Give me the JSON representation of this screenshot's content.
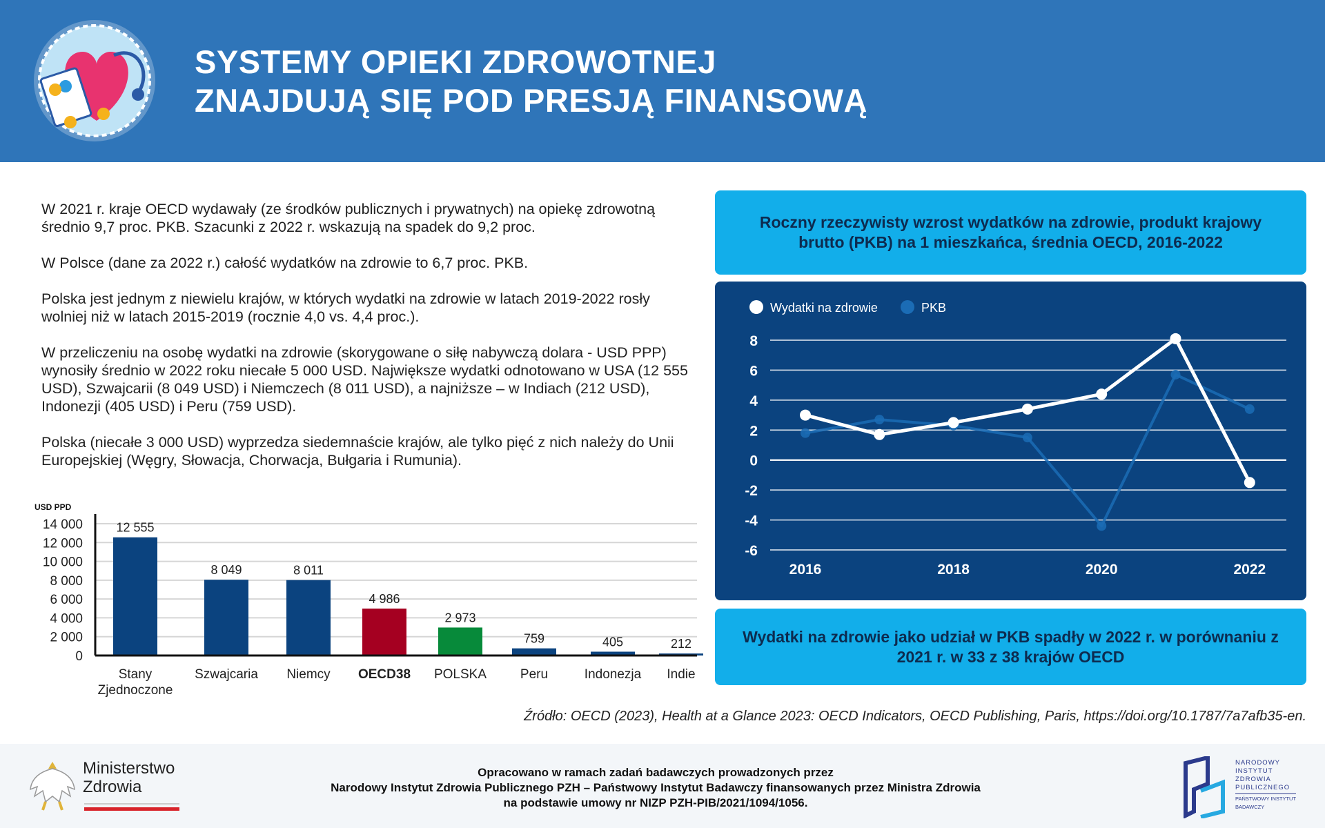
{
  "header": {
    "title_line1": "SYSTEMY OPIEKI ZDROWOTNEJ",
    "title_line2": "ZNAJDUJĄ SIĘ POD PRESJĄ FINANSOWĄ"
  },
  "intro": {
    "p1": "W 2021 r. kraje OECD wydawały (ze środków publicznych i prywatnych) na opiekę zdrowotną średnio 9,7 proc. PKB. Szacunki z 2022 r. wskazują na spadek do 9,2 proc.",
    "p2": "W Polsce (dane za 2022 r.) całość wydatków na zdrowie to 6,7 proc. PKB.",
    "p3": "Polska jest jednym z niewielu krajów, w których wydatki na zdrowie w latach 2019-2022 rosły wolniej niż w latach 2015-2019 (rocznie 4,0 vs. 4,4 proc.).",
    "p4": "W przeliczeniu na osobę wydatki na zdrowie (skorygowane o siłę nabywczą dolara - USD PPP) wynosiły średnio w 2022 roku niecałe 5 000 USD. Największe wydatki odnotowano w USA (12 555 USD), Szwajcarii (8 049 USD) i Niemczech (8 011 USD), a najniższe – w Indiach (212 USD), Indonezji (405 USD) i Peru (759 USD).",
    "p5": "Polska (niecałe 3 000 USD) wyprzedza siedemnaście krajów, ale tylko pięć z nich należy do Unii Europejskiej (Węgry, Słowacja, Chorwacja, Bułgaria i Rumunia)."
  },
  "box_top": "Roczny rzeczywisty wzrost wydatków na zdrowie, produkt krajowy brutto (PKB) na 1 mieszkańca, średnia OECD,  2016-2022",
  "box_bottom": "Wydatki na zdrowie jako udział w PKB spadły w 2022 r. w porównaniu z 2021 r. w 33 z 38 krajów OECD",
  "source": "Źródło: OECD (2023), Health at a Glance 2023: OECD Indicators, OECD Publishing, Paris, https://doi.org/10.1787/7a7afb35-en.",
  "footer": {
    "line1": "Opracowano w ramach zadań badawczych prowadzonych przez",
    "line2": "Narodowy Instytut Zdrowia Publicznego PZH – Państwowy Instytut Badawczy finansowanych przez Ministra Zdrowia",
    "line3": "na podstawie umowy nr NIZP PZH-PIB/2021/1094/1056.",
    "ministry": "Ministerstwo Zdrowia",
    "ministry_l1": "Ministerstwo",
    "ministry_l2": "Zdrowia",
    "pzh": "NARODOWY INSTYTUT ZDROWIA PUBLICZNEGO PAŃSTWOWY INSTYTUT BADAWCZY"
  },
  "colors": {
    "header": "#2f75b9",
    "cyan": "#12aeea",
    "navy": "#0b437f",
    "bar_default": "#0b437f",
    "bar_oecd": "#a50021",
    "bar_polska": "#078a3a",
    "line_health": "#ffffff",
    "line_gdp": "#1b6cb5"
  },
  "chart_data": [
    {
      "type": "bar",
      "ylabel": "USD PPD",
      "ylim": [
        0,
        14000
      ],
      "yticks": [
        "0",
        "2 000",
        "4 000",
        "6 000",
        "8 000",
        "10 000",
        "12 000",
        "14 000"
      ],
      "ytick_values": [
        0,
        2000,
        4000,
        6000,
        8000,
        10000,
        12000,
        14000
      ],
      "categories": [
        [
          "Stany",
          "Zjednoczone"
        ],
        [
          "Szwajcaria"
        ],
        [
          "Niemcy"
        ],
        [
          "OECD38"
        ],
        [
          "POLSKA"
        ],
        [
          "Peru"
        ],
        [
          "Indonezja"
        ],
        [
          "Indie"
        ]
      ],
      "values": [
        12555,
        8049,
        8011,
        4986,
        2973,
        759,
        405,
        212
      ],
      "labels": [
        "12 555",
        "8 049",
        "8 011",
        "4 986",
        "2 973",
        "759",
        "405",
        "212"
      ],
      "highlight": {
        "OECD38": "#a50021",
        "POLSKA": "#078a3a"
      },
      "grid": true
    },
    {
      "type": "line",
      "title": "Roczny rzeczywisty wzrost wydatków na zdrowie, produkt krajowy brutto (PKB) na 1 mieszkańca, średnia OECD,  2016-2022",
      "x": [
        2016,
        2017,
        2018,
        2019,
        2020,
        2021,
        2022
      ],
      "xticks": [
        "2016",
        "2018",
        "2020",
        "2022"
      ],
      "ylim": [
        -6,
        8
      ],
      "yticks": [
        "-6",
        "-4",
        "-2",
        "0",
        "2",
        "4",
        "6",
        "8"
      ],
      "legend": "top-left",
      "grid": true,
      "series": [
        {
          "name": "Wydatki na zdrowie",
          "values": [
            3.0,
            1.7,
            2.5,
            3.4,
            4.4,
            8.1,
            -1.5
          ]
        },
        {
          "name": "PKB",
          "values": [
            1.8,
            2.7,
            2.3,
            1.5,
            -4.4,
            5.7,
            3.4
          ]
        }
      ]
    }
  ]
}
